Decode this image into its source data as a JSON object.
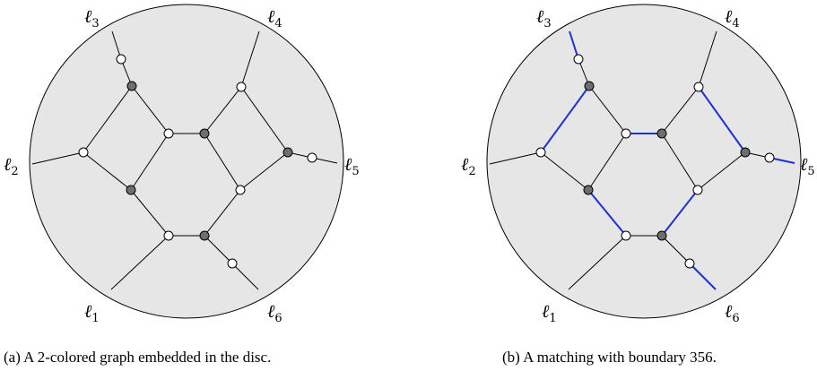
{
  "captions": {
    "a": "(a) A 2-colored graph embedded in the disc.",
    "b": "(b) A matching with boundary 356."
  },
  "boundary_labels": [
    {
      "symbol": "ℓ",
      "index": "3"
    },
    {
      "symbol": "ℓ",
      "index": "4"
    },
    {
      "symbol": "ℓ",
      "index": "2"
    },
    {
      "symbol": "ℓ",
      "index": "5"
    },
    {
      "symbol": "ℓ",
      "index": "1"
    },
    {
      "symbol": "ℓ",
      "index": "6"
    }
  ],
  "colors": {
    "disc_fill": "#e6e6e6",
    "black_vertex": "#6e6e6e",
    "white_vertex": "#ffffff",
    "matching_edge": "#1f2fd6"
  }
}
